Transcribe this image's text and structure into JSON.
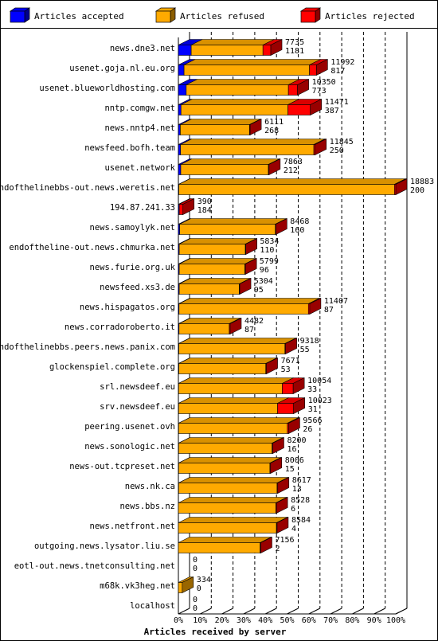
{
  "chart_data": {
    "type": "bar",
    "orientation": "horizontal",
    "stacked": true,
    "title": "",
    "xlabel": "Articles received by server",
    "ylabel": "",
    "xlim": [
      0,
      100
    ],
    "x_unit": "%",
    "x_ticks": [
      "0%",
      "10%",
      "20%",
      "30%",
      "40%",
      "50%",
      "60%",
      "70%",
      "80%",
      "90%",
      "100%"
    ],
    "grid": "vertical dashed",
    "legend_position": "top",
    "legend": [
      {
        "name": "Articles accepted",
        "color": "#0000ff"
      },
      {
        "name": "Articles refused",
        "color": "#ffaa00"
      },
      {
        "name": "Articles rejected",
        "color": "#ff0000"
      }
    ],
    "rows": [
      {
        "server": "news.dne3.net",
        "accepted_pct": 5.9,
        "refused_pct": 33.0,
        "rejected_pct": 3.6,
        "label_top": "7735",
        "label_bottom": "1181"
      },
      {
        "server": "usenet.goja.nl.eu.org",
        "accepted_pct": 2.6,
        "refused_pct": 57.7,
        "rejected_pct": 3.2,
        "label_top": "11992",
        "label_bottom": "817"
      },
      {
        "server": "usenet.blueworldhosting.com",
        "accepted_pct": 3.6,
        "refused_pct": 47.0,
        "rejected_pct": 4.2,
        "label_top": "10350",
        "label_bottom": "773"
      },
      {
        "server": "nntp.comgw.net",
        "accepted_pct": 1.2,
        "refused_pct": 49.2,
        "rejected_pct": 10.3,
        "label_top": "11471",
        "label_bottom": "387"
      },
      {
        "server": "news.nntp4.net",
        "accepted_pct": 0.9,
        "refused_pct": 31.8,
        "rejected_pct": 0.3,
        "label_top": "6111",
        "label_bottom": "268"
      },
      {
        "server": "newsfeed.bofh.team",
        "accepted_pct": 1.0,
        "refused_pct": 61.3,
        "rejected_pct": 0.6,
        "label_top": "11845",
        "label_bottom": "250"
      },
      {
        "server": "usenet.network",
        "accepted_pct": 1.1,
        "refused_pct": 40.3,
        "rejected_pct": 0.3,
        "label_top": "7863",
        "label_bottom": "212"
      },
      {
        "server": "endofthelinebbs-out.news.weretis.net",
        "accepted_pct": 0.2,
        "refused_pct": 99.2,
        "rejected_pct": 0.6,
        "label_top": "18883",
        "label_bottom": "200"
      },
      {
        "server": "194.87.241.33",
        "accepted_pct": 0.4,
        "refused_pct": 0.0,
        "rejected_pct": 1.7,
        "label_top": "390",
        "label_bottom": "184"
      },
      {
        "server": "news.samoylyk.net",
        "accepted_pct": 0.6,
        "refused_pct": 44.0,
        "rejected_pct": 0.2,
        "label_top": "8468",
        "label_bottom": "160"
      },
      {
        "server": "endoftheline-out.news.chmurka.net",
        "accepted_pct": 0.4,
        "refused_pct": 30.4,
        "rejected_pct": 0.1,
        "label_top": "5834",
        "label_bottom": "110"
      },
      {
        "server": "news.furie.org.uk",
        "accepted_pct": 0.4,
        "refused_pct": 30.2,
        "rejected_pct": 0.1,
        "label_top": "5799",
        "label_bottom": "96"
      },
      {
        "server": "newsfeed.xs3.de",
        "accepted_pct": 0.4,
        "refused_pct": 27.6,
        "rejected_pct": 0.1,
        "label_top": "5304",
        "label_bottom": "95"
      },
      {
        "server": "news.hispagatos.org",
        "accepted_pct": 0.3,
        "refused_pct": 59.5,
        "rejected_pct": 0.6,
        "label_top": "11407",
        "label_bottom": "87"
      },
      {
        "server": "news.corradoroberto.it",
        "accepted_pct": 0.3,
        "refused_pct": 23.1,
        "rejected_pct": 0.4,
        "label_top": "4482",
        "label_bottom": "87"
      },
      {
        "server": "endofthelinebbs.peers.news.panix.com",
        "accepted_pct": 0.2,
        "refused_pct": 48.8,
        "rejected_pct": 0.3,
        "label_top": "9318",
        "label_bottom": "55"
      },
      {
        "server": "glockenspiel.complete.org",
        "accepted_pct": 0.2,
        "refused_pct": 40.0,
        "rejected_pct": 0.3,
        "label_top": "7671",
        "label_bottom": "53"
      },
      {
        "server": "srl.newsdeef.eu",
        "accepted_pct": 0.1,
        "refused_pct": 47.7,
        "rejected_pct": 5.0,
        "label_top": "10054",
        "label_bottom": "33"
      },
      {
        "server": "srv.newsdeef.eu",
        "accepted_pct": 0.1,
        "refused_pct": 45.5,
        "rejected_pct": 7.4,
        "label_top": "10023",
        "label_bottom": "31"
      },
      {
        "server": "peering.usenet.ovh",
        "accepted_pct": 0.1,
        "refused_pct": 50.0,
        "rejected_pct": 0.6,
        "label_top": "9566",
        "label_bottom": "26"
      },
      {
        "server": "news.sonologic.net",
        "accepted_pct": 0.1,
        "refused_pct": 43.0,
        "rejected_pct": 0.3,
        "label_top": "8200",
        "label_bottom": "16"
      },
      {
        "server": "news-out.tcpreset.net",
        "accepted_pct": 0.1,
        "refused_pct": 42.0,
        "rejected_pct": 0.3,
        "label_top": "8006",
        "label_bottom": "15"
      },
      {
        "server": "news.nk.ca",
        "accepted_pct": 0.1,
        "refused_pct": 45.3,
        "rejected_pct": 0.3,
        "label_top": "8617",
        "label_bottom": "13"
      },
      {
        "server": "news.bbs.nz",
        "accepted_pct": 0.0,
        "refused_pct": 44.8,
        "rejected_pct": 0.3,
        "label_top": "8528",
        "label_bottom": "6"
      },
      {
        "server": "news.netfront.net",
        "accepted_pct": 0.0,
        "refused_pct": 45.1,
        "rejected_pct": 0.3,
        "label_top": "8584",
        "label_bottom": "4"
      },
      {
        "server": "outgoing.news.lysator.liu.se",
        "accepted_pct": 0.0,
        "refused_pct": 37.6,
        "rejected_pct": 0.3,
        "label_top": "7156",
        "label_bottom": "2"
      },
      {
        "server": "eotl-out.news.tnetconsulting.net",
        "accepted_pct": 0.0,
        "refused_pct": 0.0,
        "rejected_pct": 0.0,
        "label_top": "0",
        "label_bottom": "0"
      },
      {
        "server": "m68k.vk3heg.net",
        "accepted_pct": 0.0,
        "refused_pct": 1.76,
        "rejected_pct": 0.0,
        "label_top": "334",
        "label_bottom": "0"
      },
      {
        "server": "localhost",
        "accepted_pct": 0.0,
        "refused_pct": 0.0,
        "rejected_pct": 0.0,
        "label_top": "0",
        "label_bottom": "0"
      }
    ]
  }
}
